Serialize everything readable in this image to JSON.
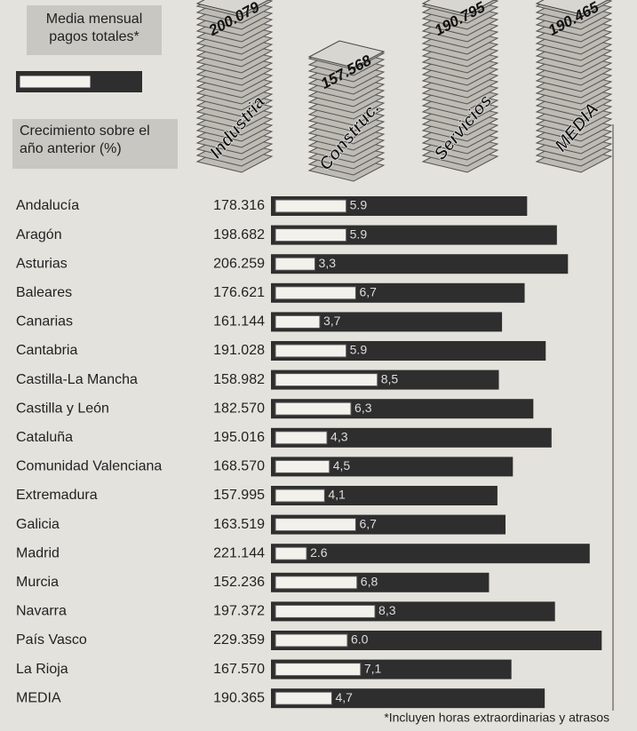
{
  "chart_data": {
    "type": "bar",
    "orientation": "horizontal",
    "categories": [
      "Andalucía",
      "Aragón",
      "Asturias",
      "Baleares",
      "Canarias",
      "Cantabria",
      "Castilla-La Mancha",
      "Castilla y León",
      "Cataluña",
      "Comunidad Valenciana",
      "Extremadura",
      "Galicia",
      "Madrid",
      "Murcia",
      "Navarra",
      "País Vasco",
      "La Rioja",
      "MEDIA"
    ],
    "series": [
      {
        "name": "Media mensual pagos totales*",
        "color": "#2e2e2e",
        "values": [
          178316,
          198682,
          206259,
          176621,
          161144,
          191028,
          158982,
          182570,
          195016,
          168570,
          157995,
          163519,
          221144,
          152236,
          197372,
          229359,
          167570,
          190365
        ],
        "value_labels": [
          "178.316",
          "198.682",
          "206.259",
          "176.621",
          "161.144",
          "191.028",
          "158.982",
          "182.570",
          "195.016",
          "168.570",
          "157.995",
          "163.519",
          "221.144",
          "152.236",
          "197.372",
          "229.359",
          "167.570",
          "190.365"
        ]
      },
      {
        "name": "Crecimiento sobre el año anterior (%)",
        "color": "#f2f1ec",
        "values": [
          5.9,
          5.9,
          3.3,
          6.7,
          3.7,
          5.9,
          8.5,
          6.3,
          4.3,
          4.5,
          4.1,
          6.7,
          2.6,
          6.8,
          8.3,
          6.0,
          7.1,
          4.7
        ],
        "value_labels": [
          "5.9",
          "5.9",
          "3,3",
          "6,7",
          "3,7",
          "5.9",
          "8,5",
          "6,3",
          "4,3",
          "4,5",
          "4,1",
          "6,7",
          "2.6",
          "6,8",
          "8,3",
          "6.0",
          "7,1",
          "4,7"
        ]
      }
    ],
    "sectors": {
      "categories": [
        "Industria",
        "Construc.",
        "Servicios",
        "MEDIA"
      ],
      "values": [
        200079,
        157568,
        190795,
        190465
      ],
      "value_labels": [
        "200.079",
        "157.568",
        "190.795",
        "190.465"
      ]
    },
    "footnote": "*Incluyen horas extraordinarias y atrasos"
  }
}
